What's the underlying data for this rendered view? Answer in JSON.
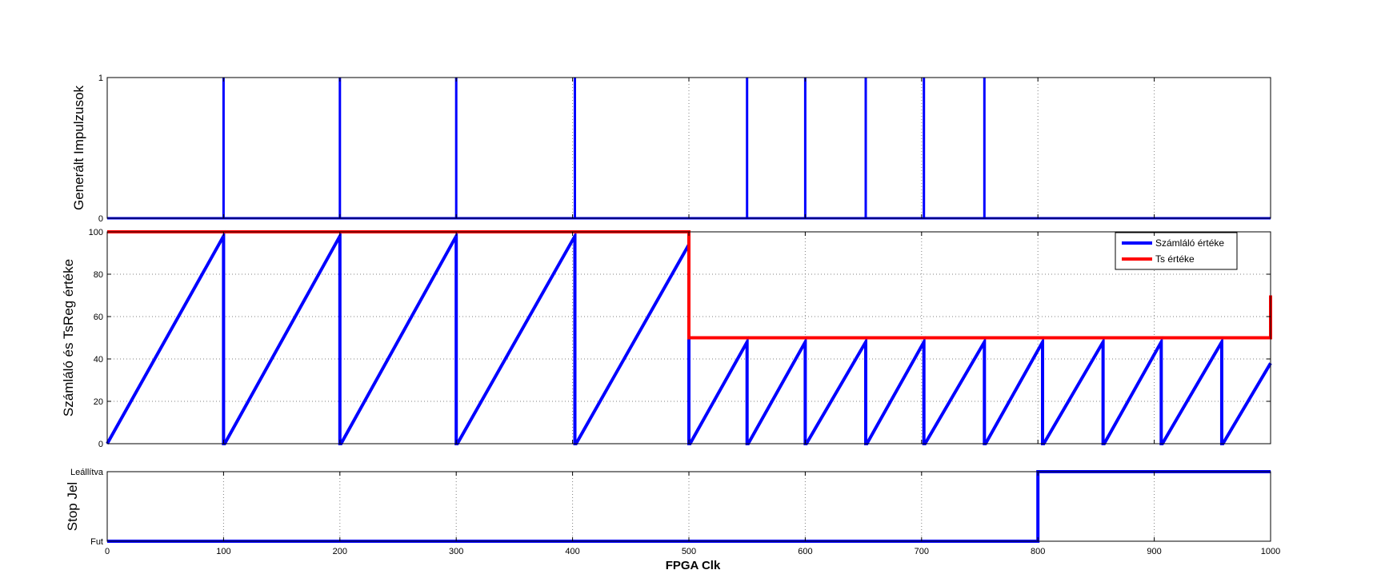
{
  "colors": {
    "blue": "#0000ff",
    "red": "#ff0000",
    "axis": "#000000",
    "grid": "#808080"
  },
  "x_axis": {
    "label": "FPGA Clk",
    "xlim": [
      0,
      1000
    ],
    "ticks": [
      0,
      100,
      200,
      300,
      400,
      500,
      600,
      700,
      800,
      900,
      1000
    ]
  },
  "chart_data": [
    {
      "id": "pulses",
      "type": "line",
      "ylabel": "Generált Impulzusok",
      "xlim": [
        0,
        1000
      ],
      "ylim": [
        0,
        1
      ],
      "yticks": [
        0,
        1
      ],
      "ytick_labels": [
        "0",
        "1"
      ],
      "grid": true,
      "series": [
        {
          "color": "#0000ff",
          "impulses_at": [
            100,
            200,
            300,
            402,
            550,
            600,
            652,
            702,
            754
          ]
        }
      ]
    },
    {
      "id": "counter",
      "type": "line",
      "ylabel": "Számláló és TsReg értéke",
      "xlim": [
        0,
        1000
      ],
      "ylim": [
        0,
        100
      ],
      "yticks": [
        0,
        20,
        40,
        60,
        80,
        100
      ],
      "ytick_labels": [
        "0",
        "20",
        "40",
        "60",
        "80",
        "100"
      ],
      "grid": true,
      "legend_position": "top-right",
      "series": [
        {
          "name": "Számláló értéke",
          "color": "#0000ff",
          "x": [
            0,
            100,
            100,
            101,
            200,
            200,
            201,
            300,
            300,
            301,
            402,
            402,
            403,
            500,
            500,
            501,
            550,
            550,
            551,
            600,
            600,
            601,
            652,
            652,
            653,
            702,
            702,
            703,
            754,
            754,
            755,
            804,
            804,
            805,
            856,
            856,
            857,
            906,
            906,
            907,
            958,
            958,
            959,
            1000
          ],
          "y": [
            0,
            98,
            0,
            0,
            98,
            0,
            0,
            98,
            0,
            0,
            98,
            0,
            0,
            94,
            0,
            0,
            48,
            0,
            0,
            48,
            0,
            0,
            48,
            0,
            0,
            48,
            0,
            0,
            48,
            0,
            0,
            48,
            0,
            0,
            48,
            0,
            0,
            48,
            0,
            0,
            48,
            0,
            0,
            38
          ]
        },
        {
          "name": "Ts értéke",
          "color": "#ff0000",
          "x": [
            0,
            500,
            500,
            1000,
            1000
          ],
          "y": [
            100,
            100,
            50,
            50,
            70
          ]
        }
      ]
    },
    {
      "id": "stop",
      "type": "line",
      "ylabel": "Stop Jel",
      "xlim": [
        0,
        1000
      ],
      "ylim": [
        0,
        1
      ],
      "yticks": [
        0,
        1
      ],
      "ytick_labels": [
        "Fut",
        "Leállítva"
      ],
      "grid": true,
      "series": [
        {
          "color": "#0000ff",
          "x": [
            0,
            800,
            800,
            1000
          ],
          "y": [
            0,
            0,
            1,
            1
          ]
        }
      ]
    }
  ]
}
